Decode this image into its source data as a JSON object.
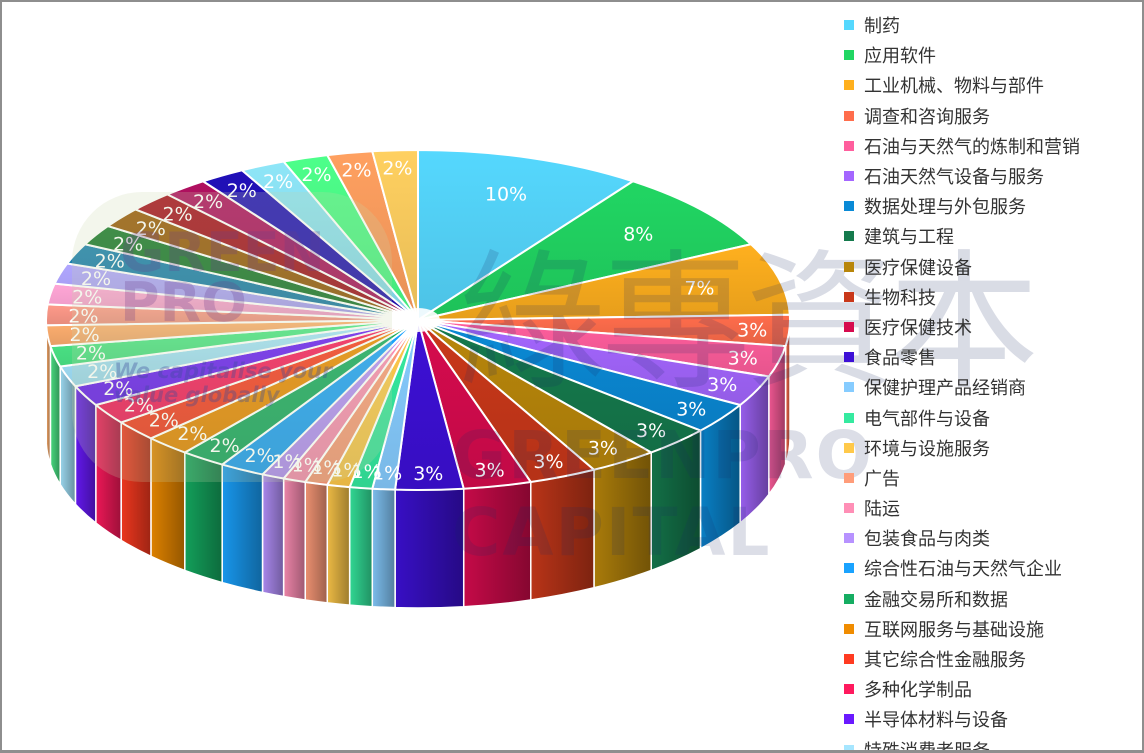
{
  "watermark": {
    "chinese": "綠專資本",
    "english": "GREENPRO CAPITAL",
    "logo_line1": "GREEN",
    "logo_line2": "PRO",
    "tagline1": "We capitalise your",
    "tagline2": "value globally"
  },
  "chart_data": {
    "type": "pie",
    "variant": "3d-tilted",
    "title": "",
    "start_angle": "12 o'clock, clockwise",
    "label_format": "percent (rounded)",
    "legend_position": "right",
    "slices": [
      {
        "label": "制药",
        "value": 10,
        "color": "#55d8fe"
      },
      {
        "label": "应用软件",
        "value": 8,
        "color": "#21d663"
      },
      {
        "label": "工业机械、物料与部件",
        "value": 7,
        "color": "#ffb01e"
      },
      {
        "label": "调查和咨询服务",
        "value": 3,
        "color": "#ff6d4c"
      },
      {
        "label": "石油与天然气的炼制和营销",
        "value": 3,
        "color": "#ff5e9d"
      },
      {
        "label": "石油天然气设备与服务",
        "value": 3,
        "color": "#a466ff"
      },
      {
        "label": "数据处理与外包服务",
        "value": 3,
        "color": "#0a8ad6"
      },
      {
        "label": "建筑与工程",
        "value": 3,
        "color": "#157a4d"
      },
      {
        "label": "医疗保健设备",
        "value": 3,
        "color": "#b8860b"
      },
      {
        "label": "生物科技",
        "value": 3,
        "color": "#c9381a"
      },
      {
        "label": "医疗保健技术",
        "value": 3,
        "color": "#d60b4e"
      },
      {
        "label": "食品零售",
        "value": 3,
        "color": "#3d10d6"
      },
      {
        "label": "保健护理产品经销商",
        "value": 1,
        "color": "#86ccff"
      },
      {
        "label": "电气部件与设备",
        "value": 1,
        "color": "#35eaa0"
      },
      {
        "label": "环境与设施服务",
        "value": 1,
        "color": "#ffc94a"
      },
      {
        "label": "广告",
        "value": 1,
        "color": "#ff9d7a"
      },
      {
        "label": "陆运",
        "value": 1,
        "color": "#ff8fb6"
      },
      {
        "label": "包装食品与肉类",
        "value": 1,
        "color": "#b792ff"
      },
      {
        "label": "综合性石油与天然气企业",
        "value": 2,
        "color": "#1aa3ff"
      },
      {
        "label": "金融交易所和数据",
        "value": 2,
        "color": "#15ad62"
      },
      {
        "label": "互联网服务与基础设施",
        "value": 2,
        "color": "#f08c00"
      },
      {
        "label": "其它综合性金融服务",
        "value": 2,
        "color": "#ff3b21"
      },
      {
        "label": "多种化学制品",
        "value": 2,
        "color": "#ff1a5e"
      },
      {
        "label": "半导体材料与设备",
        "value": 2,
        "color": "#6a1aff"
      },
      {
        "label": "特殊消费者服务",
        "value": 2,
        "color": "#a6e6ff"
      },
      {
        "label": "",
        "value": 2,
        "color": "#4deb8a"
      },
      {
        "label": "",
        "value": 2,
        "color": "#ffb070"
      },
      {
        "label": "",
        "value": 2,
        "color": "#ff9a8a"
      },
      {
        "label": "",
        "value": 2,
        "color": "#ffa6d6"
      },
      {
        "label": "",
        "value": 2,
        "color": "#b0a6ff"
      },
      {
        "label": "",
        "value": 2,
        "color": "#1a80b0"
      },
      {
        "label": "",
        "value": 2,
        "color": "#1a7a2e"
      },
      {
        "label": "",
        "value": 2,
        "color": "#9a5a0a"
      },
      {
        "label": "",
        "value": 2,
        "color": "#a8101e"
      },
      {
        "label": "",
        "value": 2,
        "color": "#b01060"
      },
      {
        "label": "",
        "value": 2,
        "color": "#2010b8"
      },
      {
        "label": "",
        "value": 2,
        "color": "#8ee6f8"
      },
      {
        "label": "",
        "value": 2,
        "color": "#4dff8a"
      },
      {
        "label": "",
        "value": 2,
        "color": "#ffa060"
      },
      {
        "label": "",
        "value": 2,
        "color": "#ffd060"
      }
    ],
    "visible_legend_count": 25
  },
  "legend": {
    "items": [
      {
        "label": "制药",
        "color": "#55d8fe"
      },
      {
        "label": "应用软件",
        "color": "#21d663"
      },
      {
        "label": "工业机械、物料与部件",
        "color": "#ffb01e"
      },
      {
        "label": "调查和咨询服务",
        "color": "#ff6d4c"
      },
      {
        "label": "石油与天然气的炼制和营销",
        "color": "#ff5e9d"
      },
      {
        "label": "石油天然气设备与服务",
        "color": "#a466ff"
      },
      {
        "label": "数据处理与外包服务",
        "color": "#0a8ad6"
      },
      {
        "label": "建筑与工程",
        "color": "#157a4d"
      },
      {
        "label": "医疗保健设备",
        "color": "#b8860b"
      },
      {
        "label": "生物科技",
        "color": "#c9381a"
      },
      {
        "label": "医疗保健技术",
        "color": "#d60b4e"
      },
      {
        "label": "食品零售",
        "color": "#3d10d6"
      },
      {
        "label": "保健护理产品经销商",
        "color": "#86ccff"
      },
      {
        "label": "电气部件与设备",
        "color": "#35eaa0"
      },
      {
        "label": "环境与设施服务",
        "color": "#ffc94a"
      },
      {
        "label": "广告",
        "color": "#ff9d7a"
      },
      {
        "label": "陆运",
        "color": "#ff8fb6"
      },
      {
        "label": "包装食品与肉类",
        "color": "#b792ff"
      },
      {
        "label": "综合性石油与天然气企业",
        "color": "#1aa3ff"
      },
      {
        "label": "金融交易所和数据",
        "color": "#15ad62"
      },
      {
        "label": "互联网服务与基础设施",
        "color": "#f08c00"
      },
      {
        "label": "其它综合性金融服务",
        "color": "#ff3b21"
      },
      {
        "label": "多种化学制品",
        "color": "#ff1a5e"
      },
      {
        "label": "半导体材料与设备",
        "color": "#6a1aff"
      },
      {
        "label": "特殊消费者服务",
        "color": "#a6e6ff"
      }
    ]
  }
}
